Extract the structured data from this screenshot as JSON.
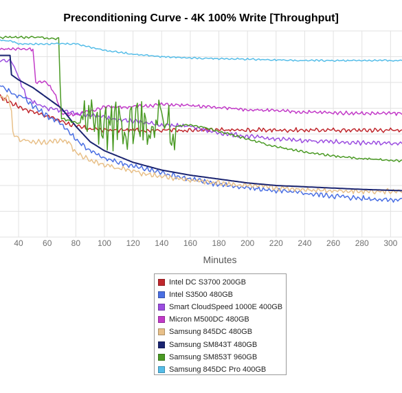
{
  "chart_data": {
    "type": "line",
    "title": "Preconditioning Curve - 4K 100% Write [Throughput]",
    "xlabel": "Minutes",
    "ylabel": "",
    "x_ticks": [
      40,
      60,
      80,
      100,
      120,
      140,
      160,
      180,
      200,
      220,
      240,
      260,
      280,
      300
    ],
    "xlim": [
      27,
      308
    ],
    "ylim": [
      0,
      8
    ],
    "y_axis_labels_visible": false,
    "grid": true,
    "legend_position": "bottom-center",
    "series": [
      {
        "name": "Intel DC S3700 200GB",
        "color": "#c0272d",
        "points": [
          [
            27,
            5.45
          ],
          [
            35,
            5.2
          ],
          [
            45,
            4.95
          ],
          [
            60,
            4.7
          ],
          [
            70,
            4.5
          ],
          [
            80,
            4.3
          ],
          [
            90,
            4.2
          ],
          [
            100,
            4.15
          ],
          [
            120,
            4.15
          ],
          [
            160,
            4.15
          ],
          [
            200,
            4.15
          ],
          [
            240,
            4.15
          ],
          [
            280,
            4.15
          ],
          [
            308,
            4.15
          ]
        ],
        "noise": 0.1
      },
      {
        "name": "Intel S3500 480GB",
        "color": "#4a6fe3",
        "points": [
          [
            27,
            5.9
          ],
          [
            30,
            5.8
          ],
          [
            33,
            5.7
          ],
          [
            35,
            5.6
          ],
          [
            38,
            5.5
          ],
          [
            40,
            5.5
          ],
          [
            44,
            5.4
          ],
          [
            50,
            5.1
          ],
          [
            60,
            4.7
          ],
          [
            70,
            4.4
          ],
          [
            80,
            3.8
          ],
          [
            90,
            3.35
          ],
          [
            100,
            3.05
          ],
          [
            120,
            2.75
          ],
          [
            140,
            2.5
          ],
          [
            160,
            2.25
          ],
          [
            180,
            2.05
          ],
          [
            200,
            1.9
          ],
          [
            220,
            1.8
          ],
          [
            240,
            1.7
          ],
          [
            260,
            1.6
          ],
          [
            280,
            1.5
          ],
          [
            300,
            1.45
          ],
          [
            308,
            1.45
          ]
        ],
        "noise": 0.12
      },
      {
        "name": "Smart CloudSpeed 1000E 400GB",
        "color": "#9b4de0",
        "points": [
          [
            27,
            6.85
          ],
          [
            35,
            6.85
          ],
          [
            40,
            6.2
          ],
          [
            45,
            5.5
          ],
          [
            50,
            5.25
          ],
          [
            60,
            5.0
          ],
          [
            80,
            4.8
          ],
          [
            100,
            4.65
          ],
          [
            120,
            4.5
          ],
          [
            140,
            4.35
          ],
          [
            160,
            4.3
          ],
          [
            170,
            4.15
          ],
          [
            180,
            4.05
          ],
          [
            200,
            3.9
          ],
          [
            220,
            3.8
          ],
          [
            240,
            3.75
          ],
          [
            260,
            3.7
          ],
          [
            280,
            3.65
          ],
          [
            308,
            3.65
          ]
        ],
        "noise": 0.1
      },
      {
        "name": "Micron M500DC 480GB",
        "color": "#c23ac8",
        "points": [
          [
            27,
            7.3
          ],
          [
            45,
            7.3
          ],
          [
            50,
            7.3
          ],
          [
            52,
            6.0
          ],
          [
            60,
            6.0
          ],
          [
            66,
            5.5
          ],
          [
            70,
            4.8
          ],
          [
            80,
            4.75
          ],
          [
            100,
            5.05
          ],
          [
            120,
            5.05
          ],
          [
            140,
            5.15
          ],
          [
            160,
            5.1
          ],
          [
            200,
            4.95
          ],
          [
            240,
            4.85
          ],
          [
            280,
            4.8
          ],
          [
            308,
            4.8
          ]
        ],
        "noise": 0.08
      },
      {
        "name": "Samsung 845DC 480GB",
        "color": "#e8c089",
        "points": [
          [
            27,
            5.4
          ],
          [
            33,
            5.4
          ],
          [
            35,
            4.9
          ],
          [
            36,
            4.0
          ],
          [
            40,
            3.8
          ],
          [
            50,
            3.7
          ],
          [
            60,
            3.7
          ],
          [
            70,
            3.75
          ],
          [
            75,
            3.7
          ],
          [
            80,
            3.25
          ],
          [
            90,
            3.0
          ],
          [
            100,
            2.8
          ],
          [
            120,
            2.55
          ],
          [
            140,
            2.35
          ],
          [
            160,
            2.2
          ],
          [
            180,
            2.1
          ],
          [
            200,
            2.0
          ],
          [
            220,
            1.9
          ],
          [
            240,
            1.85
          ],
          [
            260,
            1.8
          ],
          [
            280,
            1.78
          ],
          [
            308,
            1.77
          ]
        ],
        "noise": 0.12
      },
      {
        "name": "Samsung SM843T 480GB",
        "color": "#1a2471",
        "points": [
          [
            27,
            7.05
          ],
          [
            34,
            7.05
          ],
          [
            35,
            6.3
          ],
          [
            40,
            6.1
          ],
          [
            50,
            5.8
          ],
          [
            60,
            5.4
          ],
          [
            70,
            5.0
          ],
          [
            80,
            4.3
          ],
          [
            90,
            3.7
          ],
          [
            100,
            3.35
          ],
          [
            120,
            2.9
          ],
          [
            140,
            2.6
          ],
          [
            160,
            2.4
          ],
          [
            180,
            2.25
          ],
          [
            200,
            2.1
          ],
          [
            220,
            2.0
          ],
          [
            240,
            1.95
          ],
          [
            260,
            1.9
          ],
          [
            280,
            1.85
          ],
          [
            308,
            1.8
          ]
        ],
        "noise": 0.0
      },
      {
        "name": "Samsung SM853T 960GB",
        "color": "#4a9a24",
        "points": [
          [
            27,
            7.75
          ],
          [
            40,
            7.75
          ],
          [
            55,
            7.75
          ],
          [
            60,
            7.7
          ],
          [
            68,
            7.7
          ],
          [
            69,
            6.0
          ],
          [
            70,
            4.6
          ],
          [
            80,
            4.45
          ],
          [
            90,
            4.3
          ],
          [
            100,
            4.3
          ],
          [
            110,
            4.3
          ],
          [
            120,
            4.35
          ],
          [
            130,
            4.4
          ],
          [
            140,
            4.4
          ],
          [
            150,
            4.3
          ],
          [
            155,
            4.35
          ],
          [
            160,
            4.35
          ],
          [
            170,
            4.25
          ],
          [
            180,
            4.1
          ],
          [
            200,
            3.8
          ],
          [
            220,
            3.5
          ],
          [
            240,
            3.3
          ],
          [
            260,
            3.15
          ],
          [
            280,
            3.05
          ],
          [
            308,
            2.95
          ]
        ],
        "noise": 0.05
      },
      {
        "name": "Samsung 845DC Pro 400GB",
        "color": "#55bde8",
        "points": [
          [
            27,
            7.65
          ],
          [
            35,
            7.6
          ],
          [
            40,
            7.5
          ],
          [
            60,
            7.5
          ],
          [
            80,
            7.5
          ],
          [
            100,
            7.25
          ],
          [
            120,
            7.1
          ],
          [
            140,
            7.0
          ],
          [
            160,
            6.95
          ],
          [
            200,
            6.9
          ],
          [
            240,
            6.85
          ],
          [
            280,
            6.85
          ],
          [
            308,
            6.85
          ]
        ],
        "noise": 0.04
      }
    ]
  }
}
